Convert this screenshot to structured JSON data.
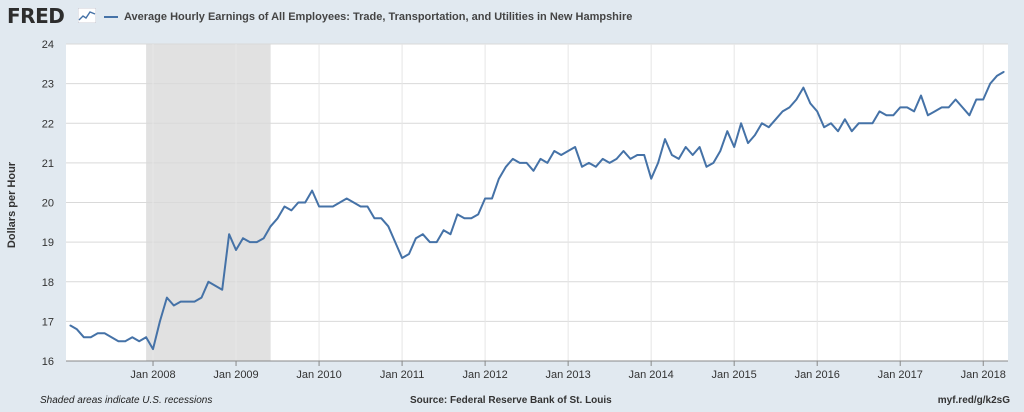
{
  "brand": {
    "logo_text": "FRED",
    "logo_icon": "fred-chart-icon"
  },
  "footer": {
    "note": "Shaded areas indicate U.S. recessions",
    "source": "Source: Federal Reserve Bank of St. Louis",
    "link": "myf.red/g/k2sG"
  },
  "chart_data": {
    "type": "line",
    "series": [
      {
        "name": "Average Hourly Earnings of All Employees: Trade, Transportation, and Utilities in New Hampshire",
        "color": "#4572a7",
        "x_start": "2007-01",
        "values": [
          16.9,
          16.8,
          16.6,
          16.6,
          16.7,
          16.7,
          16.6,
          16.5,
          16.5,
          16.6,
          16.5,
          16.6,
          16.3,
          17.0,
          17.6,
          17.4,
          17.5,
          17.5,
          17.5,
          17.6,
          18.0,
          17.9,
          17.8,
          19.2,
          18.8,
          19.1,
          19.0,
          19.0,
          19.1,
          19.4,
          19.6,
          19.9,
          19.8,
          20.0,
          20.0,
          20.3,
          19.9,
          19.9,
          19.9,
          20.0,
          20.1,
          20.0,
          19.9,
          19.9,
          19.6,
          19.6,
          19.4,
          19.0,
          18.6,
          18.7,
          19.1,
          19.2,
          19.0,
          19.0,
          19.3,
          19.2,
          19.7,
          19.6,
          19.6,
          19.7,
          20.1,
          20.1,
          20.6,
          20.9,
          21.1,
          21.0,
          21.0,
          20.8,
          21.1,
          21.0,
          21.3,
          21.2,
          21.3,
          21.4,
          20.9,
          21.0,
          20.9,
          21.1,
          21.0,
          21.1,
          21.3,
          21.1,
          21.2,
          21.2,
          20.6,
          21.0,
          21.6,
          21.2,
          21.1,
          21.4,
          21.2,
          21.4,
          20.9,
          21.0,
          21.3,
          21.8,
          21.4,
          22.0,
          21.5,
          21.7,
          22.0,
          21.9,
          22.1,
          22.3,
          22.4,
          22.6,
          22.9,
          22.5,
          22.3,
          21.9,
          22.0,
          21.8,
          22.1,
          21.8,
          22.0,
          22.0,
          22.0,
          22.3,
          22.2,
          22.2,
          22.4,
          22.4,
          22.3,
          22.7,
          22.2,
          22.3,
          22.4,
          22.4,
          22.6,
          22.4,
          22.2,
          22.6,
          22.6,
          23.0,
          23.2,
          23.3
        ]
      }
    ],
    "xlabel": "",
    "ylabel": "Dollars per Hour",
    "ylim": [
      16,
      24
    ],
    "yticks": [
      "16",
      "17",
      "18",
      "19",
      "20",
      "21",
      "22",
      "23",
      "24"
    ],
    "xticks": [
      {
        "label": "Jan 2008",
        "month_index": 12
      },
      {
        "label": "Jan 2009",
        "month_index": 24
      },
      {
        "label": "Jan 2010",
        "month_index": 36
      },
      {
        "label": "Jan 2011",
        "month_index": 48
      },
      {
        "label": "Jan 2012",
        "month_index": 60
      },
      {
        "label": "Jan 2013",
        "month_index": 72
      },
      {
        "label": "Jan 2014",
        "month_index": 84
      },
      {
        "label": "Jan 2015",
        "month_index": 96
      },
      {
        "label": "Jan 2016",
        "month_index": 108
      },
      {
        "label": "Jan 2017",
        "month_index": 120
      },
      {
        "label": "Jan 2018",
        "month_index": 132
      }
    ],
    "recessions": [
      {
        "start": "2007-12",
        "end": "2009-06"
      }
    ],
    "grid": true,
    "legend_position": "top-left"
  }
}
